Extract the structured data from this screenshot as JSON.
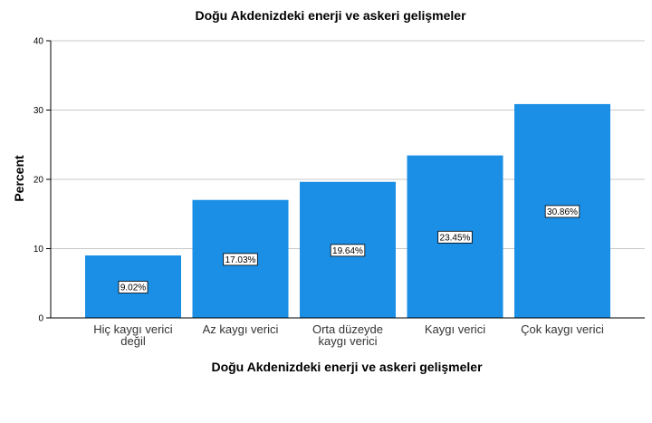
{
  "chart_data": {
    "type": "bar",
    "title": "Doğu Akdenizdeki enerji ve askeri gelişmeler",
    "xlabel": "Doğu Akdenizdeki enerji ve askeri gelişmeler",
    "ylabel": "Percent",
    "categories": [
      [
        "Hiç kaygı verici",
        "değil"
      ],
      [
        "Az kaygı verici"
      ],
      [
        "Orta düzeyde",
        "kaygı verici"
      ],
      [
        "Kaygı verici"
      ],
      [
        "Çok kaygı verici"
      ]
    ],
    "values": [
      9.02,
      17.03,
      19.64,
      23.45,
      30.86
    ],
    "data_labels": [
      "9.02%",
      "17.03%",
      "19.64%",
      "23.45%",
      "30.86%"
    ],
    "ylim": [
      0,
      40
    ],
    "yticks": [
      0,
      10,
      20,
      30,
      40
    ],
    "grid": true,
    "bar_color": "#1b8fe6"
  }
}
